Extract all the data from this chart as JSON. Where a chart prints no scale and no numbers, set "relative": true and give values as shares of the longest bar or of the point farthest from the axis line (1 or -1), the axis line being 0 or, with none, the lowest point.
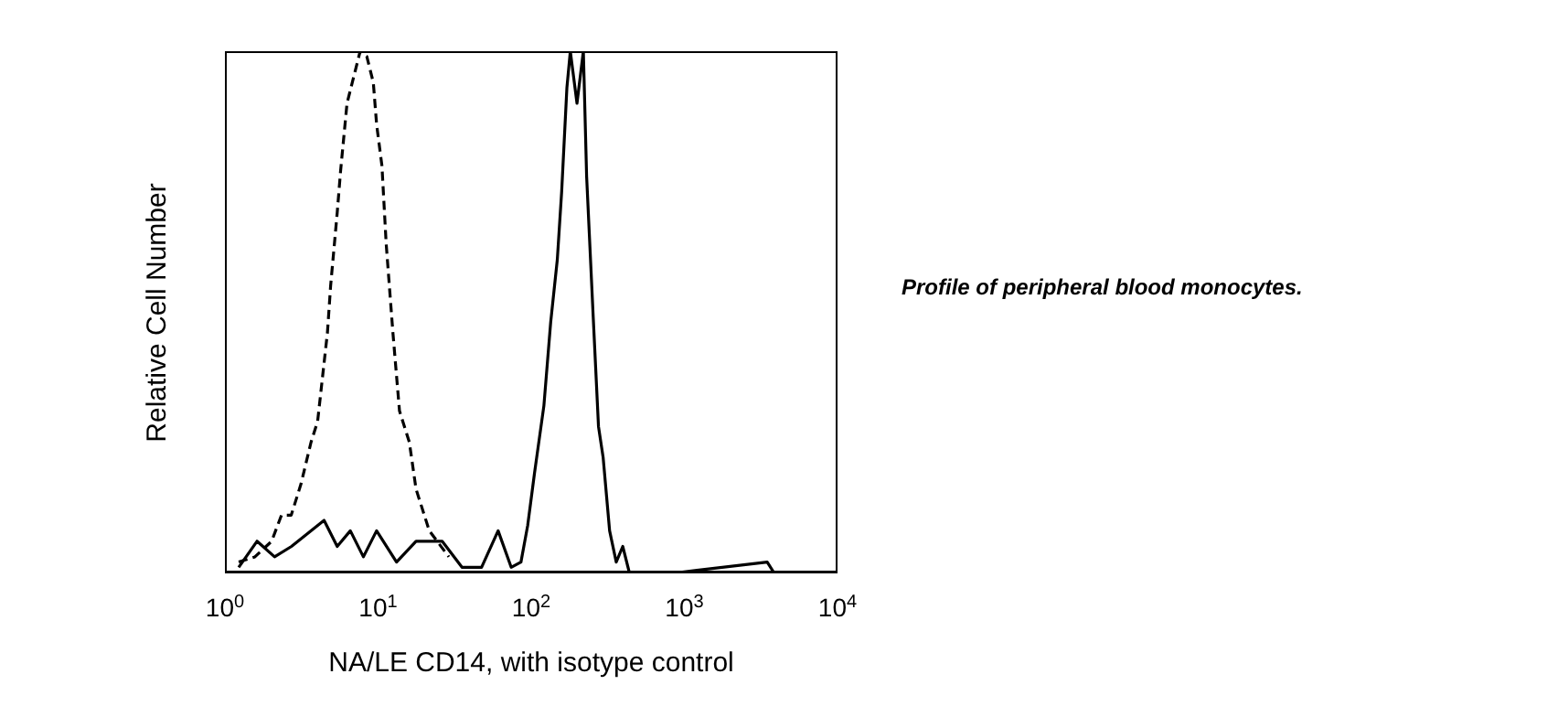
{
  "chart_data": {
    "type": "line",
    "relative": true,
    "log": "x",
    "xlabel": "NA/LE CD14, with isotype control",
    "ylabel": "Relative Cell Number",
    "xlim": [
      1,
      10000
    ],
    "xticks": [
      {
        "value": 1,
        "label": "10$^{0}$"
      },
      {
        "value": 10,
        "label": "10$^{1}$"
      },
      {
        "value": 100,
        "label": "10$^{2}$"
      },
      {
        "value": 1000,
        "label": "10$^{3}$"
      },
      {
        "value": 10000,
        "label": "10$^{4}$"
      }
    ],
    "marker": "none",
    "annotations": [
      "Profile of peripheral blood monocytes."
    ],
    "series": [
      {
        "color": "#000000",
        "line_style": "dashed",
        "x": [
          1.23,
          1.57,
          2.02,
          2.34,
          2.71,
          3.14,
          3.65,
          4.03,
          4.67,
          4.9,
          5.41,
          5.69,
          6.27,
          6.92,
          7.64,
          8.44,
          9.31,
          9.78,
          10.6,
          11.3,
          12.5,
          13.8,
          16.0,
          17.7,
          21.6,
          29.0
        ],
        "values": [
          0.02,
          0.03,
          0.06,
          0.11,
          0.11,
          0.17,
          0.25,
          0.29,
          0.46,
          0.55,
          0.69,
          0.77,
          0.9,
          0.95,
          1,
          0.99,
          0.94,
          0.86,
          0.78,
          0.63,
          0.46,
          0.31,
          0.25,
          0.16,
          0.08,
          0.03
        ]
      },
      {
        "color": "#000000",
        "line_style": "solid",
        "x": [
          1.23,
          1.62,
          2.11,
          2.72,
          4.44,
          5.41,
          6.59,
          8.02,
          9.78,
          13.2,
          17.7,
          26.2,
          35.3,
          47.4,
          60.8,
          74.0,
          85.7,
          94.8,
          105,
          121,
          134,
          148,
          158,
          171,
          180,
          199,
          219,
          230,
          254,
          275,
          295,
          325,
          359,
          396,
          437,
          916,
          3475,
          3840,
          10000
        ],
        "values": [
          0.01,
          0.06,
          0.03,
          0.05,
          0.1,
          0.05,
          0.08,
          0.03,
          0.08,
          0.02,
          0.06,
          0.06,
          0.01,
          0.01,
          0.08,
          0.01,
          0.02,
          0.09,
          0.19,
          0.32,
          0.48,
          0.6,
          0.73,
          0.93,
          1,
          0.9,
          1,
          0.76,
          0.49,
          0.28,
          0.22,
          0.08,
          0.02,
          0.05,
          0,
          0,
          0.02,
          0,
          0
        ]
      }
    ]
  }
}
